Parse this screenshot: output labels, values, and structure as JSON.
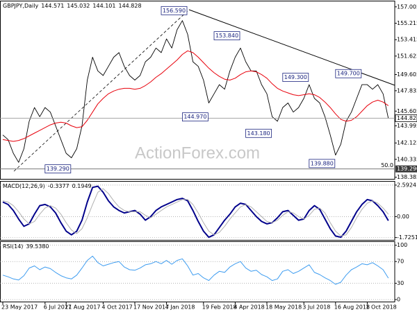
{
  "chart_data": [
    {
      "type": "line",
      "title": "GBPJPY,Daily",
      "ohlc": [
        144.571,
        145.032,
        144.101,
        144.828
      ],
      "watermark": "ActionForex.com",
      "ylim": [
        138.2,
        157.6
      ],
      "yticks": [
        157.005,
        155.215,
        153.415,
        151.625,
        149.605,
        147.835,
        145.605,
        143.995,
        142.125,
        140.335,
        138.385
      ],
      "grid": false,
      "series": [
        {
          "name": "Close",
          "color": "#000000",
          "values": [
            143.0,
            142.5,
            141.0,
            140.0,
            141.5,
            144.5,
            146.0,
            145.0,
            146.0,
            145.5,
            144.0,
            142.5,
            141.0,
            140.5,
            141.5,
            144.0,
            149.0,
            151.5,
            150.0,
            149.5,
            150.5,
            151.5,
            152.0,
            150.5,
            149.5,
            149.0,
            149.5,
            151.0,
            151.5,
            152.5,
            152.0,
            153.5,
            152.5,
            154.5,
            155.5,
            154.0,
            151.0,
            150.5,
            149.0,
            146.5,
            147.5,
            148.5,
            148.0,
            150.0,
            151.5,
            152.5,
            151.0,
            150.0,
            150.0,
            148.5,
            147.5,
            145.0,
            144.5,
            146.0,
            146.5,
            145.5,
            146.0,
            147.0,
            148.5,
            147.0,
            146.5,
            145.0,
            143.0,
            140.8,
            142.0,
            144.5,
            145.5,
            147.0,
            148.5,
            148.5,
            148.0,
            148.5,
            147.5,
            144.8
          ]
        },
        {
          "name": "Moving Average",
          "color": "#e8000b",
          "values": [
            142.5,
            142.4,
            142.3,
            142.4,
            142.6,
            142.9,
            143.2,
            143.5,
            143.8,
            144.1,
            144.3,
            144.4,
            144.3,
            144.0,
            143.8,
            143.9,
            144.6,
            145.5,
            146.4,
            147.0,
            147.5,
            147.8,
            148.0,
            148.1,
            148.1,
            148.0,
            148.1,
            148.4,
            148.8,
            149.3,
            149.7,
            150.2,
            150.7,
            151.2,
            151.8,
            152.2,
            152.0,
            151.5,
            150.9,
            150.3,
            149.8,
            149.4,
            149.1,
            149.0,
            149.2,
            149.6,
            149.9,
            150.0,
            149.9,
            149.6,
            149.2,
            148.6,
            148.1,
            147.8,
            147.6,
            147.4,
            147.3,
            147.4,
            147.5,
            147.4,
            147.1,
            146.6,
            146.0,
            145.3,
            144.7,
            144.5,
            144.6,
            145.0,
            145.6,
            146.2,
            146.6,
            146.8,
            146.6,
            146.2
          ]
        }
      ],
      "last_price": 144.828,
      "support": {
        "value": 139.29,
        "label": "139.290"
      },
      "fib_label": "50.0",
      "annotations": [
        {
          "value": 156.59,
          "label": "156.590",
          "x": 35
        },
        {
          "value": 153.84,
          "label": "153.840",
          "x": 45
        },
        {
          "value": 149.3,
          "label": "149.300",
          "x": 58
        },
        {
          "value": 149.7,
          "label": "149.700",
          "x": 68
        },
        {
          "value": 144.97,
          "label": "144.970",
          "x": 39
        },
        {
          "value": 143.18,
          "label": "143.180",
          "x": 51
        },
        {
          "value": 139.88,
          "label": "139.880",
          "x": 63
        },
        {
          "value": 139.29,
          "label": "139.290",
          "x": 13
        }
      ]
    },
    {
      "type": "line",
      "title": "MACD(12,26,9)",
      "ylim": [
        -1.917,
        2.874
      ],
      "yticks": [
        2.5924,
        {
          "value": 0,
          "label": "0.00"
        },
        -1.7251
      ],
      "grid": "dotted",
      "series": [
        {
          "name": "MACD",
          "color": "#00008b",
          "values": [
            1.2,
            1.0,
            0.5,
            -0.2,
            -0.8,
            -0.6,
            0.2,
            0.9,
            1.0,
            0.8,
            0.3,
            -0.5,
            -1.2,
            -1.5,
            -1.2,
            -0.3,
            1.2,
            2.4,
            2.5,
            2.0,
            1.3,
            0.8,
            0.5,
            0.3,
            0.4,
            0.5,
            0.2,
            -0.3,
            0.0,
            0.5,
            0.8,
            1.0,
            1.2,
            1.4,
            1.5,
            1.3,
            0.5,
            -0.4,
            -1.2,
            -1.7,
            -1.5,
            -0.9,
            -0.3,
            0.2,
            0.8,
            1.1,
            1.0,
            0.5,
            0.0,
            -0.4,
            -0.6,
            -0.5,
            -0.1,
            0.4,
            0.5,
            0.1,
            -0.3,
            -0.2,
            0.5,
            0.9,
            0.6,
            -0.2,
            -1.0,
            -1.6,
            -1.7,
            -1.2,
            -0.4,
            0.4,
            1.0,
            1.4,
            1.3,
            0.9,
            0.4,
            -0.3377
          ]
        },
        {
          "name": "Signal",
          "color": "#b0b0b0",
          "values": [
            1.3,
            1.2,
            0.9,
            0.4,
            -0.2,
            -0.6,
            -0.4,
            0.2,
            0.7,
            0.9,
            0.7,
            0.2,
            -0.5,
            -1.1,
            -1.4,
            -1.0,
            -0.1,
            1.0,
            2.0,
            2.3,
            1.9,
            1.3,
            0.8,
            0.5,
            0.4,
            0.4,
            0.4,
            0.1,
            -0.1,
            0.2,
            0.5,
            0.8,
            1.0,
            1.2,
            1.4,
            1.4,
            1.0,
            0.3,
            -0.5,
            -1.2,
            -1.5,
            -1.3,
            -0.8,
            -0.2,
            0.3,
            0.8,
            1.0,
            0.8,
            0.4,
            0.0,
            -0.4,
            -0.5,
            -0.3,
            0.1,
            0.4,
            0.3,
            0.0,
            -0.2,
            0.1,
            0.6,
            0.7,
            0.3,
            -0.5,
            -1.2,
            -1.6,
            -1.5,
            -0.9,
            -0.1,
            0.6,
            1.1,
            1.3,
            1.1,
            0.7,
            0.1949
          ]
        }
      ]
    },
    {
      "type": "line",
      "title": "RSI(14)",
      "readout": "39.5380",
      "ylim": [
        -5,
        106
      ],
      "yticks": [
        100,
        70,
        30,
        0
      ],
      "grid": "dotted",
      "categories": [
        "23 May 2017",
        null,
        null,
        null,
        null,
        null,
        null,
        null,
        "6 Jul 2017",
        null,
        null,
        null,
        "21 Aug 2017",
        null,
        null,
        null,
        null,
        null,
        null,
        "4 Oct 2017",
        null,
        null,
        null,
        null,
        null,
        "17 Nov 2017",
        null,
        null,
        null,
        null,
        null,
        "4 Jan 2018",
        null,
        null,
        null,
        null,
        null,
        null,
        "19 Feb 2018",
        null,
        null,
        null,
        null,
        null,
        "4 Apr 2018",
        null,
        null,
        null,
        null,
        null,
        "18 May 2018",
        null,
        null,
        null,
        null,
        null,
        null,
        "3 Jul 2018",
        null,
        null,
        null,
        null,
        null,
        "16 Aug 2018",
        null,
        null,
        null,
        null,
        null,
        "1 Oct 2018",
        null,
        null,
        null,
        null
      ],
      "series": [
        {
          "name": "RSI",
          "color": "#3d9cf0",
          "values": [
            45,
            42,
            38,
            36,
            44,
            58,
            62,
            55,
            60,
            57,
            50,
            44,
            40,
            38,
            45,
            58,
            72,
            80,
            68,
            62,
            65,
            68,
            70,
            60,
            55,
            54,
            58,
            64,
            66,
            70,
            66,
            72,
            65,
            72,
            75,
            62,
            45,
            48,
            40,
            35,
            45,
            52,
            50,
            60,
            66,
            70,
            58,
            52,
            54,
            46,
            42,
            35,
            38,
            52,
            55,
            48,
            52,
            58,
            64,
            50,
            46,
            40,
            35,
            28,
            32,
            45,
            55,
            60,
            66,
            64,
            68,
            62,
            55,
            39.538
          ]
        }
      ]
    }
  ]
}
